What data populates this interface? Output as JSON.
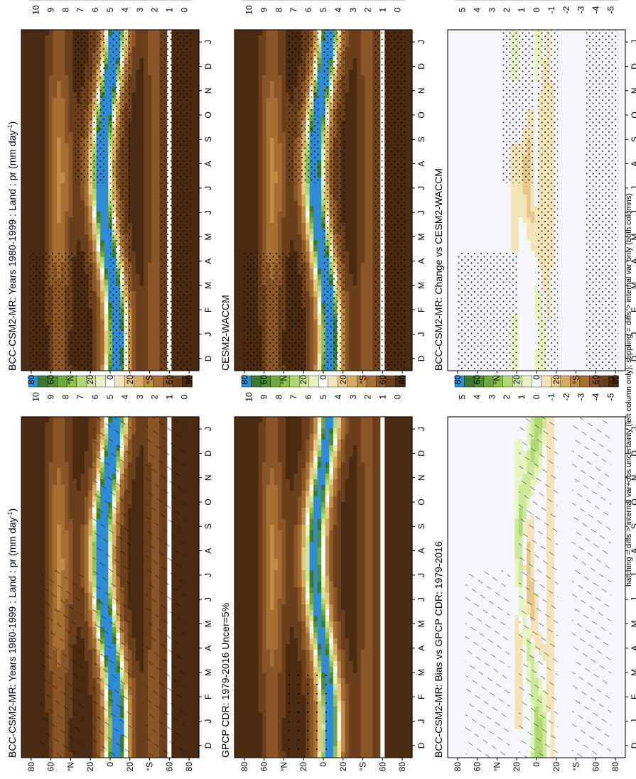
{
  "figure": {
    "footnote": "hatching = diffs > internal var+obs uncertainty (left column only); stippling = diffs > internal var only (both columns)"
  },
  "colors": {
    "abs_scale": [
      "#4a2a10",
      "#6b3f1c",
      "#8a5628",
      "#a56f33",
      "#bf8c45",
      "#d5ac5e",
      "#e6c88a",
      "#f2e3b8",
      "#ffffff",
      "#e8f3c4",
      "#cde89a",
      "#b0d872",
      "#8ec24f",
      "#6ea83a",
      "#4f8f30",
      "#3a7a2a",
      "#2f8bd6"
    ],
    "diff_scale": [
      "#4a2a10",
      "#6b3f1c",
      "#8a5628",
      "#a56f33",
      "#bf8c45",
      "#d5ac5e",
      "#e6c88a",
      "#f2e3b8",
      "#f4f6fb",
      "#e8f3c4",
      "#cde89a",
      "#b0d872",
      "#8ec24f",
      "#6ea83a",
      "#4f8f30",
      "#3a7a2a",
      "#2f8bd6"
    ]
  },
  "chart_data": [
    {
      "id": "model_left",
      "type": "heatmap",
      "title": "BCC-CSM2-MR: Years 1980-1999 : Land : pr (mm day",
      "title_sup": "-1",
      "title_end": ")",
      "x_ticks": [
        "D",
        "J",
        "F",
        "M",
        "A",
        "M",
        "J",
        "J",
        "A",
        "S",
        "O",
        "N",
        "D",
        "J"
      ],
      "y_ticks": [
        "80",
        "60",
        "°N",
        "20",
        "0",
        "20",
        "°S",
        "60",
        "80"
      ],
      "colorbar_ticks": [
        "10",
        "9",
        "8",
        "7",
        "6",
        "5",
        "4",
        "3",
        "2",
        "1",
        "0"
      ],
      "scale": "abs",
      "ylim": [
        -90,
        90
      ],
      "wet_amp": 9.5,
      "overlay": "hatch"
    },
    {
      "id": "model_right",
      "type": "heatmap",
      "title": "BCC-CSM2-MR: Years 1980-1999 : Land : pr (mm day",
      "title_sup": "-1",
      "title_end": ")",
      "x_ticks": [
        "D",
        "J",
        "F",
        "M",
        "A",
        "M",
        "J",
        "J",
        "A",
        "S",
        "O",
        "N",
        "D",
        "J"
      ],
      "y_ticks": [
        "80",
        "60",
        "°N",
        "20",
        "0",
        "20",
        "°S",
        "60",
        "80"
      ],
      "colorbar_ticks": [
        "10",
        "9",
        "8",
        "7",
        "6",
        "5",
        "4",
        "3",
        "2",
        "1",
        "0"
      ],
      "scale": "abs",
      "ylim": [
        -90,
        90
      ],
      "wet_amp": 9.5,
      "overlay": "stipple"
    },
    {
      "id": "obs",
      "type": "heatmap",
      "title": "GPCP CDR: 1979-2016 Uncer=5%",
      "x_ticks": [
        "D",
        "J",
        "F",
        "M",
        "A",
        "M",
        "J",
        "J",
        "A",
        "S",
        "O",
        "N",
        "D",
        "J"
      ],
      "y_ticks": [
        "80",
        "60",
        "°N",
        "20",
        "0",
        "20",
        "°S",
        "60",
        "80"
      ],
      "colorbar_ticks": [
        "10",
        "9",
        "8",
        "7",
        "6",
        "5",
        "4",
        "3",
        "2",
        "1",
        "0"
      ],
      "scale": "abs",
      "ylim": [
        -90,
        90
      ],
      "wet_amp": 7.5,
      "overlay": "sparse-stipple"
    },
    {
      "id": "reference_model",
      "type": "heatmap",
      "title": "CESM2-WACCM",
      "x_ticks": [
        "D",
        "J",
        "F",
        "M",
        "A",
        "M",
        "J",
        "J",
        "A",
        "S",
        "O",
        "N",
        "D",
        "J"
      ],
      "y_ticks": [
        "80",
        "60",
        "°N",
        "20",
        "0",
        "20",
        "°S",
        "60",
        "80"
      ],
      "colorbar_ticks": [
        "10",
        "9",
        "8",
        "7",
        "6",
        "5",
        "4",
        "3",
        "2",
        "1",
        "0"
      ],
      "scale": "abs",
      "ylim": [
        -90,
        90
      ],
      "wet_amp": 9.2,
      "overlay": "stipple"
    },
    {
      "id": "bias",
      "type": "heatmap",
      "title": "BCC-CSM2-MR: Bias vs GPCP CDR: 1979-2016",
      "x_ticks": [
        "D",
        "J",
        "F",
        "M",
        "A",
        "M",
        "J",
        "J",
        "A",
        "S",
        "O",
        "N",
        "D",
        "J"
      ],
      "y_ticks": [
        "80",
        "60",
        "°N",
        "20",
        "0",
        "20",
        "°S",
        "60",
        "80"
      ],
      "colorbar_ticks": [
        "5",
        "4",
        "3",
        "2",
        "1",
        "0",
        "-1",
        "-2",
        "-3",
        "-4",
        "-5"
      ],
      "scale": "diff",
      "ylim": [
        -90,
        90
      ],
      "overlay": "hatch"
    },
    {
      "id": "change",
      "type": "heatmap",
      "title": "BCC-CSM2-MR: Change vs CESM2-WACCM",
      "x_ticks": [
        "D",
        "J",
        "F",
        "M",
        "A",
        "M",
        "J",
        "J",
        "A",
        "S",
        "O",
        "N",
        "D",
        "J"
      ],
      "y_ticks": [
        "80",
        "60",
        "°N",
        "20",
        "0",
        "20",
        "°S",
        "60",
        "80"
      ],
      "colorbar_ticks": [
        "5",
        "4",
        "3",
        "2",
        "1",
        "0",
        "-1",
        "-2",
        "-3",
        "-4",
        "-5"
      ],
      "scale": "diff",
      "ylim": [
        -90,
        90
      ],
      "overlay": "stipple"
    }
  ]
}
